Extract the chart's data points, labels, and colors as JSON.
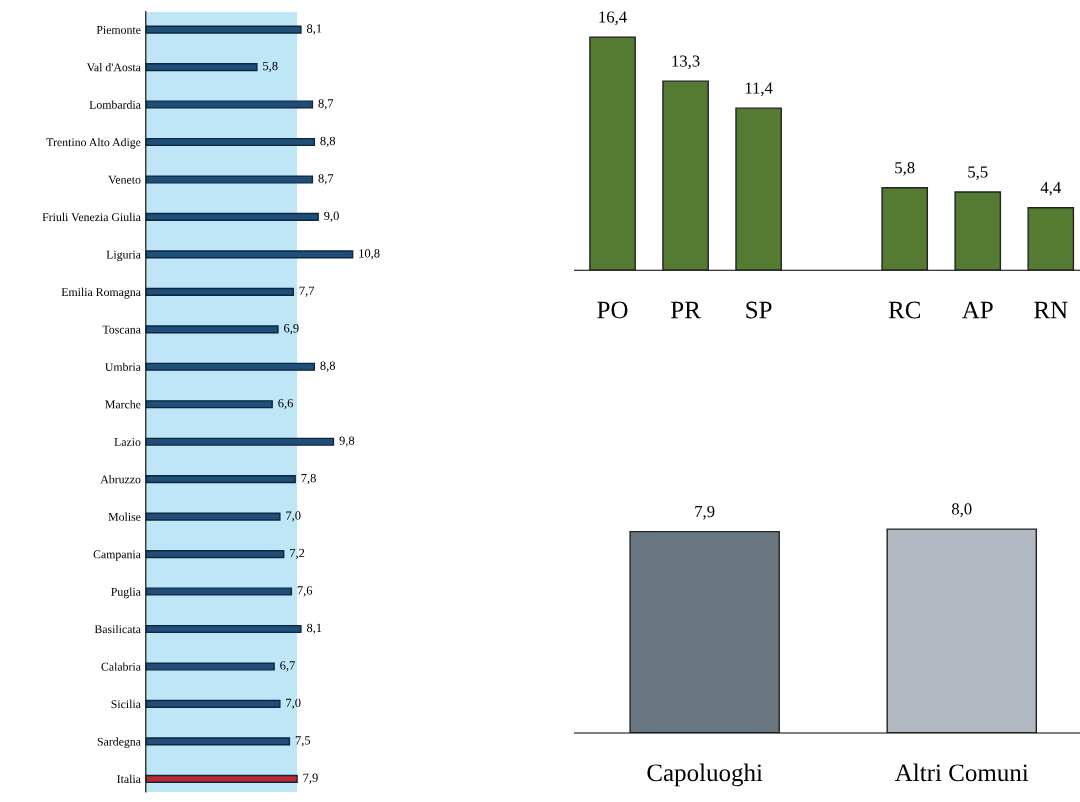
{
  "chart_data": [
    {
      "type": "bar",
      "orientation": "horizontal",
      "categories": [
        "Piemonte",
        "Val d'Aosta",
        "Lombardia",
        "Trentino Alto Adige",
        "Veneto",
        "Friuli Venezia Giulia",
        "Liguria",
        "Emilia Romagna",
        "Toscana",
        "Umbria",
        "Marche",
        "Lazio",
        "Abruzzo",
        "Molise",
        "Campania",
        "Puglia",
        "Basilicata",
        "Calabria",
        "Sicilia",
        "Sardegna",
        "Italia"
      ],
      "values": [
        8.1,
        5.8,
        8.7,
        8.8,
        8.7,
        9.0,
        10.8,
        7.7,
        6.9,
        8.8,
        6.6,
        9.8,
        7.8,
        7.0,
        7.2,
        7.6,
        8.1,
        6.7,
        7.0,
        7.5,
        7.9
      ],
      "value_labels": [
        "8,1",
        "5,8",
        "8,7",
        "8,8",
        "8,7",
        "9,0",
        "10,8",
        "7,7",
        "6,9",
        "8,8",
        "6,6",
        "9,8",
        "7,8",
        "7,0",
        "7,2",
        "7,6",
        "8,1",
        "6,7",
        "7,0",
        "7,5",
        "7,9"
      ],
      "colors": [
        "#1f4e79",
        "#1f4e79",
        "#1f4e79",
        "#1f4e79",
        "#1f4e79",
        "#1f4e79",
        "#1f4e79",
        "#1f4e79",
        "#1f4e79",
        "#1f4e79",
        "#1f4e79",
        "#1f4e79",
        "#1f4e79",
        "#1f4e79",
        "#1f4e79",
        "#1f4e79",
        "#1f4e79",
        "#1f4e79",
        "#1f4e79",
        "#1f4e79",
        "#c0282d"
      ],
      "bands": [
        {
          "axis": "x",
          "from": 0,
          "to": 7.9,
          "color": "#bfe6f7"
        }
      ],
      "grid": false,
      "legend": false
    },
    {
      "type": "bar",
      "categories": [
        "PO",
        "PR",
        "SP",
        null,
        "RC",
        "AP",
        "RN"
      ],
      "values": [
        16.4,
        13.3,
        11.4,
        null,
        5.8,
        5.5,
        4.4
      ],
      "value_labels": [
        "16,4",
        "13,3",
        "11,4",
        null,
        "5,8",
        "5,5",
        "4,4"
      ],
      "color": "#557a32",
      "grid": false,
      "legend": false
    },
    {
      "type": "bar",
      "categories": [
        "Capoluoghi",
        "Altri Comuni"
      ],
      "values": [
        7.9,
        8.0
      ],
      "value_labels": [
        "7,9",
        "8,0"
      ],
      "colors": [
        "#6b7780",
        "#b3b9c3"
      ],
      "grid": false,
      "legend": false
    }
  ]
}
